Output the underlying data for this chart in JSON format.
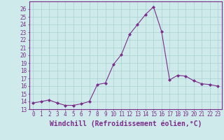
{
  "x": [
    0,
    1,
    2,
    3,
    4,
    5,
    6,
    7,
    8,
    9,
    10,
    11,
    12,
    13,
    14,
    15,
    16,
    17,
    18,
    19,
    20,
    21,
    22,
    23
  ],
  "y": [
    13.8,
    14.0,
    14.2,
    13.8,
    13.5,
    13.5,
    13.7,
    14.0,
    16.2,
    16.4,
    18.8,
    20.1,
    22.7,
    24.0,
    25.3,
    26.3,
    23.1,
    16.8,
    17.4,
    17.3,
    16.7,
    16.3,
    16.2,
    16.0
  ],
  "line_color": "#7b2d8b",
  "marker": "D",
  "marker_size": 2,
  "bg_color": "#ceeaea",
  "grid_color": "#aacfcf",
  "xlabel": "Windchill (Refroidissement éolien,°C)",
  "ylim": [
    13,
    27
  ],
  "xlim_min": -0.5,
  "xlim_max": 23.5,
  "yticks": [
    13,
    14,
    15,
    16,
    17,
    18,
    19,
    20,
    21,
    22,
    23,
    24,
    25,
    26
  ],
  "xticks": [
    0,
    1,
    2,
    3,
    4,
    5,
    6,
    7,
    8,
    9,
    10,
    11,
    12,
    13,
    14,
    15,
    16,
    17,
    18,
    19,
    20,
    21,
    22,
    23
  ],
  "tick_label_size": 5.5,
  "xlabel_size": 7.0,
  "line_color_hex": "#7b2d8b",
  "spine_color": "#7b2d8b"
}
